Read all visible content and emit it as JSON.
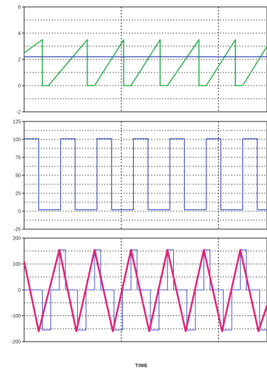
{
  "chart_data": [
    {
      "type": "line",
      "ylim": [
        -2,
        6
      ],
      "yticks": [
        -2,
        0,
        2,
        4,
        6
      ],
      "grid": true,
      "reference_y": 2.2,
      "series": [
        {
          "color": "#2db04f",
          "width": 1.6,
          "points": [
            [
              0,
              2.5
            ],
            [
              0.075,
              3.5
            ],
            [
              0.075,
              0
            ],
            [
              0.1,
              0
            ],
            [
              0.26,
              3.5
            ],
            [
              0.26,
              0
            ],
            [
              0.29,
              0
            ],
            [
              0.41,
              3.5
            ],
            [
              0.41,
              0
            ],
            [
              0.44,
              0
            ],
            [
              0.56,
              3.5
            ],
            [
              0.56,
              0
            ],
            [
              0.59,
              0
            ],
            [
              0.72,
              3.5
            ],
            [
              0.72,
              0
            ],
            [
              0.75,
              0
            ],
            [
              0.87,
              3.5
            ],
            [
              0.87,
              0
            ],
            [
              0.9,
              0
            ],
            [
              1,
              3.0
            ]
          ]
        },
        {
          "color": "#2a3fb0",
          "width": 1.0,
          "points": [
            [
              0,
              2.2
            ],
            [
              1,
              2.2
            ]
          ]
        }
      ]
    },
    {
      "type": "line",
      "ylim": [
        -25,
        125
      ],
      "yticks": [
        -25,
        0,
        25,
        50,
        75,
        100,
        125
      ],
      "grid": true,
      "series": [
        {
          "color": "#3b4fc0",
          "width": 1.2,
          "points": [
            [
              0,
              101
            ],
            [
              0.06,
              101
            ],
            [
              0.06,
              2
            ],
            [
              0.15,
              2
            ],
            [
              0.15,
              101
            ],
            [
              0.21,
              101
            ],
            [
              0.21,
              2
            ],
            [
              0.3,
              2
            ],
            [
              0.3,
              101
            ],
            [
              0.36,
              101
            ],
            [
              0.36,
              2
            ],
            [
              0.45,
              2
            ],
            [
              0.45,
              101
            ],
            [
              0.51,
              101
            ],
            [
              0.51,
              2
            ],
            [
              0.6,
              2
            ],
            [
              0.6,
              101
            ],
            [
              0.66,
              101
            ],
            [
              0.66,
              2
            ],
            [
              0.75,
              2
            ],
            [
              0.75,
              101
            ],
            [
              0.81,
              101
            ],
            [
              0.81,
              2
            ],
            [
              0.9,
              2
            ],
            [
              0.9,
              101
            ],
            [
              0.96,
              101
            ],
            [
              0.96,
              2
            ],
            [
              1,
              2
            ]
          ]
        }
      ]
    },
    {
      "type": "line",
      "ylim": [
        -200,
        200
      ],
      "yticks": [
        -200,
        -100,
        0,
        100,
        200
      ],
      "grid": true,
      "series": [
        {
          "color": "#3b4fc0",
          "width": 1.0,
          "points": [
            [
              0,
              0
            ],
            [
              0.075,
              0
            ],
            [
              0.075,
              -155
            ],
            [
              0.11,
              -155
            ],
            [
              0.11,
              0
            ],
            [
              0.145,
              0
            ],
            [
              0.145,
              155
            ],
            [
              0.17,
              155
            ],
            [
              0.17,
              0
            ],
            [
              0.22,
              0
            ],
            [
              0.22,
              -155
            ],
            [
              0.255,
              -155
            ],
            [
              0.255,
              0
            ],
            [
              0.29,
              0
            ],
            [
              0.29,
              155
            ],
            [
              0.315,
              155
            ],
            [
              0.315,
              0
            ],
            [
              0.37,
              0
            ],
            [
              0.37,
              -155
            ],
            [
              0.405,
              -155
            ],
            [
              0.405,
              0
            ],
            [
              0.44,
              0
            ],
            [
              0.44,
              155
            ],
            [
              0.465,
              155
            ],
            [
              0.465,
              0
            ],
            [
              0.52,
              0
            ],
            [
              0.52,
              -155
            ],
            [
              0.555,
              -155
            ],
            [
              0.555,
              0
            ],
            [
              0.59,
              0
            ],
            [
              0.59,
              155
            ],
            [
              0.615,
              155
            ],
            [
              0.615,
              0
            ],
            [
              0.67,
              0
            ],
            [
              0.67,
              -155
            ],
            [
              0.705,
              -155
            ],
            [
              0.705,
              0
            ],
            [
              0.74,
              0
            ],
            [
              0.74,
              155
            ],
            [
              0.765,
              155
            ],
            [
              0.765,
              0
            ],
            [
              0.82,
              0
            ],
            [
              0.82,
              -155
            ],
            [
              0.855,
              -155
            ],
            [
              0.855,
              0
            ],
            [
              0.89,
              0
            ],
            [
              0.89,
              155
            ],
            [
              0.915,
              155
            ],
            [
              0.915,
              0
            ],
            [
              0.97,
              0
            ],
            [
              0.97,
              -155
            ],
            [
              1,
              -155
            ]
          ]
        },
        {
          "color": "#e0237a",
          "width": 2.6,
          "points": [
            [
              0,
              110
            ],
            [
              0.06,
              -160
            ],
            [
              0.145,
              155
            ],
            [
              0.215,
              -160
            ],
            [
              0.29,
              155
            ],
            [
              0.365,
              -160
            ],
            [
              0.44,
              155
            ],
            [
              0.515,
              -160
            ],
            [
              0.59,
              155
            ],
            [
              0.665,
              -160
            ],
            [
              0.74,
              155
            ],
            [
              0.815,
              -160
            ],
            [
              0.89,
              155
            ],
            [
              0.965,
              -160
            ],
            [
              1,
              -60
            ]
          ]
        }
      ]
    }
  ],
  "xlabel": "TIME"
}
